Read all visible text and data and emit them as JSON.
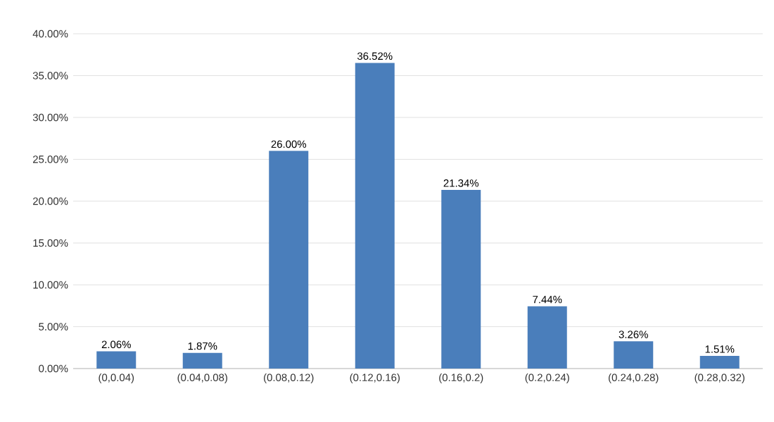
{
  "chart_data": {
    "type": "bar",
    "categories": [
      "(0,0.04)",
      "(0.04,0.08)",
      "(0.08,0.12)",
      "(0.12,0.16)",
      "(0.16,0.2)",
      "(0.2,0.24)",
      "(0.24,0.28)",
      "(0.28,0.32)"
    ],
    "values": [
      2.06,
      1.87,
      26.0,
      36.52,
      21.34,
      7.44,
      3.26,
      1.51
    ],
    "value_labels": [
      "2.06%",
      "1.87%",
      "26.00%",
      "36.52%",
      "21.34%",
      "7.44%",
      "3.26%",
      "1.51%"
    ],
    "color": "#4a7ebb",
    "ylim": [
      0,
      40
    ],
    "yticks": [
      {
        "value": 0,
        "label": "0.00%"
      },
      {
        "value": 5,
        "label": "5.00%"
      },
      {
        "value": 10,
        "label": "10.00%"
      },
      {
        "value": 15,
        "label": "15.00%"
      },
      {
        "value": 20,
        "label": "20.00%"
      },
      {
        "value": 25,
        "label": "25.00%"
      },
      {
        "value": 30,
        "label": "30.00%"
      },
      {
        "value": 35,
        "label": "35.00%"
      },
      {
        "value": 40,
        "label": "40.00%"
      }
    ],
    "grid": "y"
  }
}
